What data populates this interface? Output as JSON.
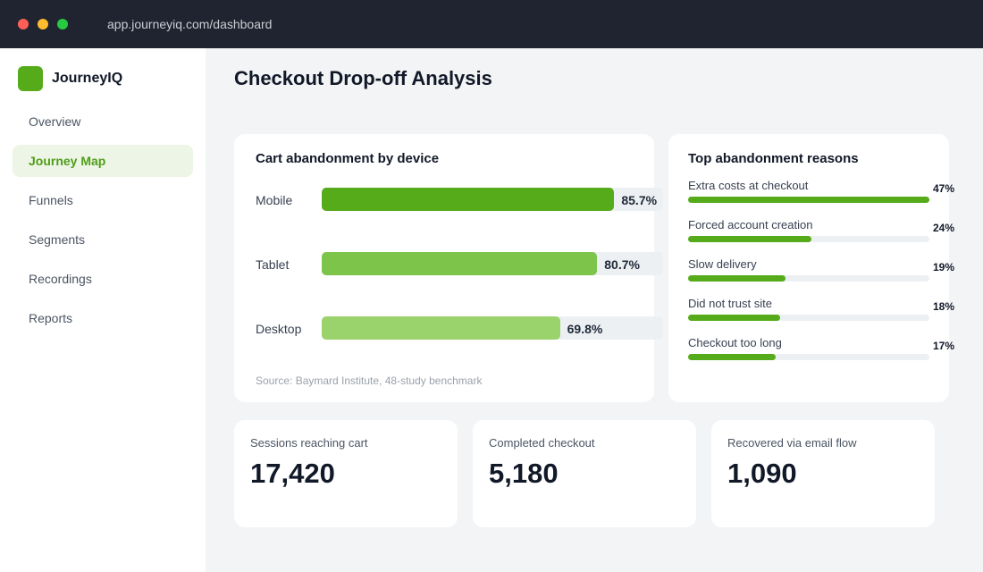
{
  "browser": {
    "url": "app.journeyiq.com/dashboard"
  },
  "sidebar": {
    "brand": "JourneyIQ",
    "items": [
      {
        "label": "Overview",
        "active": false
      },
      {
        "label": "Journey Map",
        "active": true
      },
      {
        "label": "Funnels",
        "active": false
      },
      {
        "label": "Segments",
        "active": false
      },
      {
        "label": "Recordings",
        "active": false
      },
      {
        "label": "Reports",
        "active": false
      }
    ]
  },
  "main": {
    "title": "Checkout Drop-off Analysis"
  },
  "device_card": {
    "title": "Cart abandonment by device",
    "source": "Source: Baymard Institute, 48-study benchmark",
    "rows": [
      {
        "label": "Mobile",
        "value": 85.7,
        "display": "85.7%",
        "color": "#56ab1a"
      },
      {
        "label": "Tablet",
        "value": 80.7,
        "display": "80.7%",
        "color": "#7dc44a"
      },
      {
        "label": "Desktop",
        "value": 69.8,
        "display": "69.8%",
        "color": "#9ad26b"
      }
    ]
  },
  "reasons_card": {
    "title": "Top abandonment reasons",
    "rows": [
      {
        "label": "Extra costs at checkout",
        "value": 47,
        "display": "47%"
      },
      {
        "label": "Forced account creation",
        "value": 24,
        "display": "24%"
      },
      {
        "label": "Slow delivery",
        "value": 19,
        "display": "19%"
      },
      {
        "label": "Did not trust site",
        "value": 18,
        "display": "18%"
      },
      {
        "label": "Checkout too long",
        "value": 17,
        "display": "17%"
      }
    ]
  },
  "stats": [
    {
      "label": "Sessions reaching cart",
      "value": "17,420"
    },
    {
      "label": "Completed checkout",
      "value": "5,180"
    },
    {
      "label": "Recovered via email flow",
      "value": "1,090"
    }
  ],
  "colors": {
    "accent": "#56ab1a",
    "titlebar": "#1f2430",
    "active_nav_bg": "#edf5e6"
  }
}
